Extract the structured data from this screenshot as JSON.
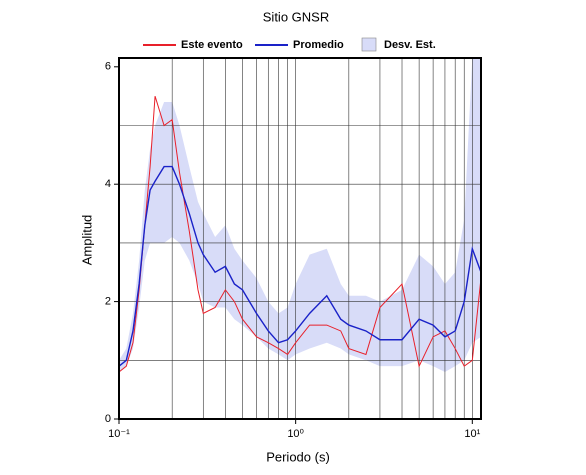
{
  "chart_data": {
    "type": "line",
    "title": "Sitio GNSR",
    "xlabel": "Periodo (s)",
    "ylabel": "Amplitud",
    "xscale": "log",
    "xlim": [
      0.1,
      11.2
    ],
    "ylim": [
      0,
      6.15
    ],
    "xticks": [
      {
        "value": 0.1,
        "label": "10⁻¹"
      },
      {
        "value": 1,
        "label": "10⁰"
      },
      {
        "value": 10,
        "label": "10¹"
      }
    ],
    "yticks": [
      0,
      2,
      4,
      6
    ],
    "xgrid": [
      0.2,
      0.3,
      0.4,
      0.5,
      0.6,
      0.7,
      0.8,
      0.9,
      1,
      2,
      3,
      4,
      5,
      6,
      7,
      8,
      9,
      10
    ],
    "ygrid": [
      1,
      2,
      3,
      4,
      5
    ],
    "legend": "top",
    "x": [
      0.1,
      0.11,
      0.12,
      0.13,
      0.14,
      0.15,
      0.16,
      0.18,
      0.2,
      0.22,
      0.25,
      0.28,
      0.3,
      0.35,
      0.4,
      0.45,
      0.5,
      0.6,
      0.7,
      0.8,
      0.9,
      1.0,
      1.2,
      1.5,
      1.8,
      2.0,
      2.5,
      3.0,
      4.0,
      5.0,
      6.0,
      7.0,
      8.0,
      9.0,
      10,
      11.2
    ],
    "series": [
      {
        "name": "Este evento",
        "color": "#e8202a",
        "values": [
          0.8,
          0.9,
          1.3,
          2.2,
          3.3,
          4.3,
          5.5,
          5.0,
          5.1,
          4.2,
          3.2,
          2.2,
          1.8,
          1.9,
          2.2,
          2.0,
          1.7,
          1.4,
          1.3,
          1.2,
          1.1,
          1.3,
          1.6,
          1.6,
          1.5,
          1.2,
          1.1,
          1.9,
          2.3,
          0.9,
          1.4,
          1.5,
          1.2,
          0.9,
          1.0,
          2.4
        ]
      },
      {
        "name": "Promedio",
        "color": "#1a22c8",
        "values": [
          0.9,
          1.0,
          1.5,
          2.3,
          3.3,
          3.9,
          4.05,
          4.3,
          4.3,
          4.0,
          3.5,
          3.0,
          2.8,
          2.5,
          2.6,
          2.3,
          2.2,
          1.8,
          1.5,
          1.3,
          1.35,
          1.5,
          1.8,
          2.1,
          1.7,
          1.6,
          1.5,
          1.35,
          1.35,
          1.7,
          1.6,
          1.4,
          1.5,
          2.0,
          2.9,
          2.5
        ]
      },
      {
        "name": "Desv. Est.",
        "color": "#d8dcf8",
        "lower": [
          0.8,
          0.9,
          1.2,
          1.9,
          2.7,
          3.0,
          3.0,
          3.0,
          3.1,
          3.0,
          2.7,
          2.3,
          2.0,
          1.9,
          1.9,
          1.7,
          1.6,
          1.4,
          1.2,
          1.1,
          1.0,
          1.1,
          1.2,
          1.3,
          1.2,
          1.1,
          1.0,
          0.9,
          0.9,
          1.0,
          0.9,
          0.8,
          0.9,
          1.0,
          1.3,
          1.4
        ],
        "upper": [
          1.0,
          1.2,
          1.8,
          2.7,
          3.9,
          4.6,
          5.0,
          5.4,
          5.4,
          5.0,
          4.3,
          3.7,
          3.5,
          3.1,
          3.3,
          2.9,
          2.7,
          2.4,
          2.0,
          1.8,
          1.9,
          2.3,
          2.8,
          2.9,
          2.3,
          2.1,
          2.1,
          2.0,
          2.2,
          2.8,
          2.6,
          2.3,
          2.5,
          3.4,
          6.15,
          6.15
        ]
      }
    ]
  }
}
